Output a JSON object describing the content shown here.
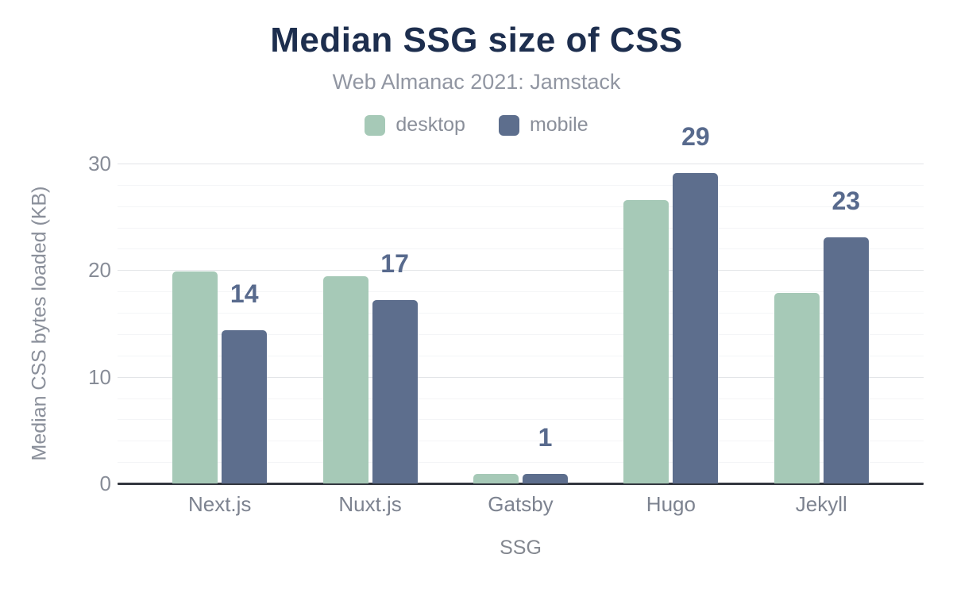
{
  "title": "Median SSG size of CSS",
  "subtitle": "Web Almanac 2021: Jamstack",
  "colors": {
    "title": "#1d2e4e",
    "subtitle": "#9196a2",
    "desktop": "#a6c9b7",
    "mobile": "#5d6e8d",
    "data_label": "#586a8d",
    "axis_line": "#33373f",
    "major_grid": "#e3e5e8",
    "minor_grid": "#f4f5f7",
    "tick_text": "#878c97"
  },
  "chart_data": {
    "type": "bar",
    "title": "Median SSG size of CSS",
    "subtitle": "Web Almanac 2021: Jamstack",
    "categories": [
      "Next.js",
      "Nuxt.js",
      "Gatsby",
      "Hugo",
      "Jekyll"
    ],
    "series": [
      {
        "name": "desktop",
        "color": "#a6c9b7",
        "values": [
          19.9,
          19.4,
          0.9,
          26.6,
          17.9
        ]
      },
      {
        "name": "mobile",
        "color": "#5d6e8d",
        "values": [
          14.4,
          17.2,
          0.9,
          29.1,
          23.1
        ],
        "data_labels": [
          "14",
          "17",
          "1",
          "29",
          "23"
        ]
      }
    ],
    "xlabel": "SSG",
    "ylabel": "Median CSS bytes loaded (KB)",
    "ylim": [
      0,
      30
    ],
    "yticks": [
      0,
      10,
      20,
      30
    ],
    "minor_grid_step": 2,
    "grid": true,
    "legend_position": "top"
  }
}
